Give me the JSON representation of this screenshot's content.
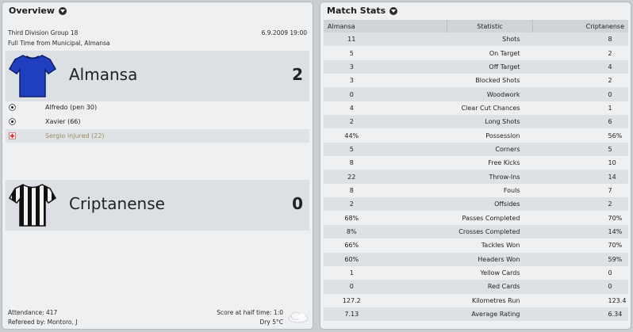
{
  "overview": {
    "title": "Overview",
    "competition": "Third Division Group 18",
    "date": "6.9.2009 19:00",
    "venue": "Full Time from Municipal, Almansa",
    "home": {
      "name": "Almansa",
      "score": "2",
      "shirt_colors": [
        "#1f3fbf",
        "#0e1f6e"
      ],
      "events": [
        {
          "type": "goal",
          "icon": "ball-icon",
          "text": "Alfredo (pen 30)"
        },
        {
          "type": "goal",
          "icon": "ball-icon",
          "text": "Xavier (66)"
        },
        {
          "type": "injury",
          "icon": "injury-icon",
          "text": "Sergio injured (22)"
        }
      ]
    },
    "away": {
      "name": "Criptanense",
      "score": "0",
      "shirt_colors": [
        "#111111",
        "#f2f2f2"
      ]
    },
    "attendance": "Attendance: 417",
    "referee": "Refereed by: Montoro, J",
    "halftime": "Score at half time: 1:0",
    "weather": "Dry 5°C",
    "weather_icon": "cloud-icon"
  },
  "stats": {
    "title": "Match Stats",
    "headers": {
      "home": "Almansa",
      "stat": "Statistic",
      "away": "Criptanense"
    },
    "rows": [
      {
        "home": "11",
        "stat": "Shots",
        "away": "8"
      },
      {
        "home": "5",
        "stat": "On Target",
        "away": "2"
      },
      {
        "home": "3",
        "stat": "Off Target",
        "away": "4"
      },
      {
        "home": "3",
        "stat": "Blocked Shots",
        "away": "2"
      },
      {
        "home": "0",
        "stat": "Woodwork",
        "away": "0"
      },
      {
        "home": "4",
        "stat": "Clear Cut Chances",
        "away": "1"
      },
      {
        "home": "2",
        "stat": "Long Shots",
        "away": "6"
      },
      {
        "home": "44%",
        "stat": "Possession",
        "away": "56%"
      },
      {
        "home": "5",
        "stat": "Corners",
        "away": "5"
      },
      {
        "home": "8",
        "stat": "Free Kicks",
        "away": "10"
      },
      {
        "home": "22",
        "stat": "Throw-Ins",
        "away": "14"
      },
      {
        "home": "8",
        "stat": "Fouls",
        "away": "7"
      },
      {
        "home": "2",
        "stat": "Offsides",
        "away": "2"
      },
      {
        "home": "68%",
        "stat": "Passes Completed",
        "away": "70%"
      },
      {
        "home": "8%",
        "stat": "Crosses Completed",
        "away": "14%"
      },
      {
        "home": "66%",
        "stat": "Tackles Won",
        "away": "70%"
      },
      {
        "home": "60%",
        "stat": "Headers Won",
        "away": "59%"
      },
      {
        "home": "1",
        "stat": "Yellow Cards",
        "away": "0"
      },
      {
        "home": "0",
        "stat": "Red Cards",
        "away": "0"
      },
      {
        "home": "127.2",
        "stat": "Kilometres Run",
        "away": "123.4"
      },
      {
        "home": "7.13",
        "stat": "Average Rating",
        "away": "6.34"
      }
    ]
  }
}
